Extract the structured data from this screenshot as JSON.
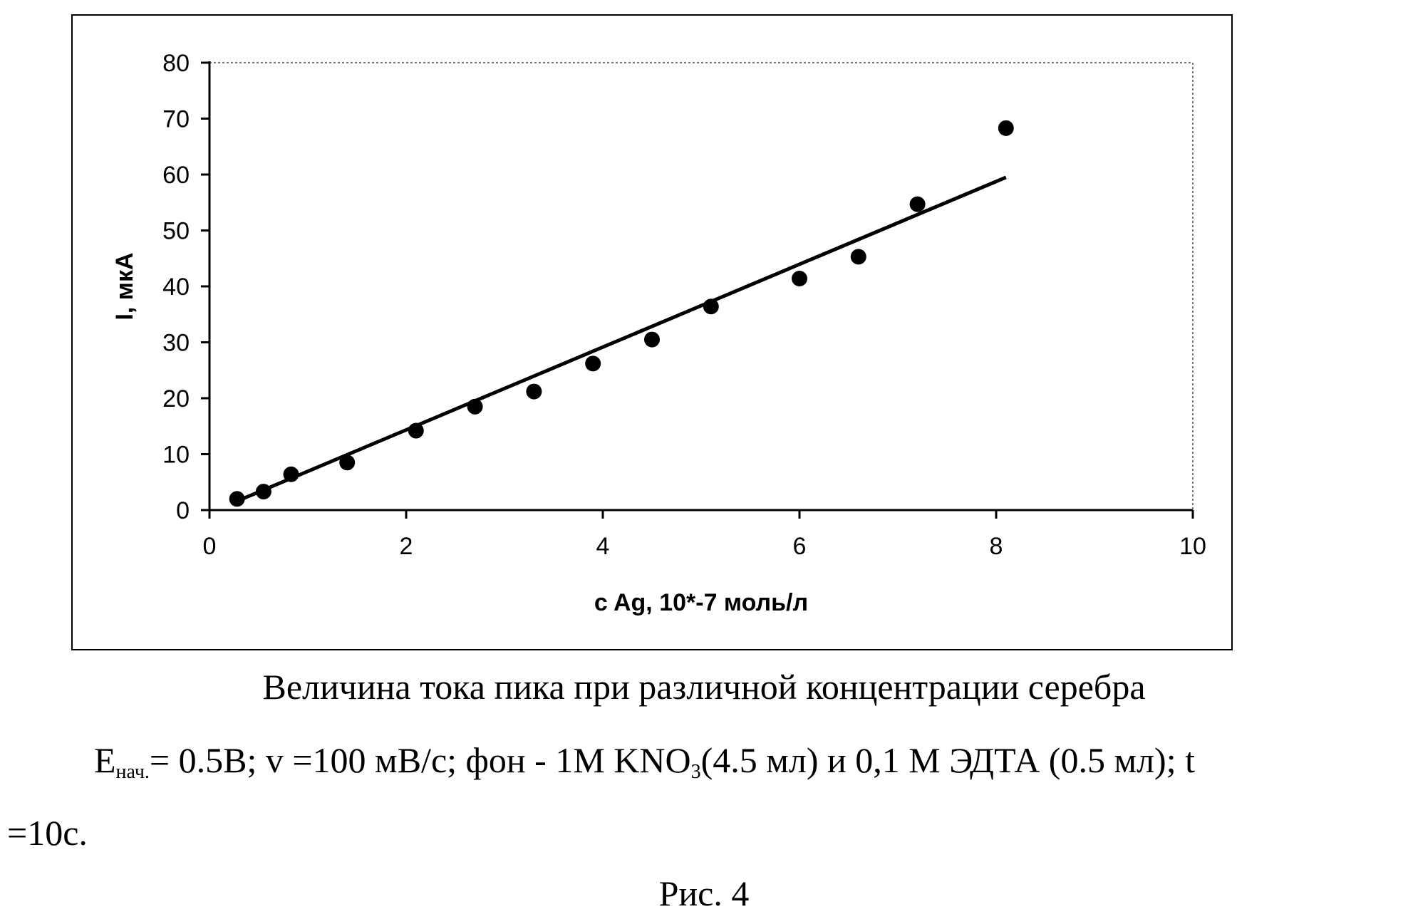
{
  "chart_data": {
    "type": "scatter",
    "title": "",
    "xlabel": "c Ag, 10*-7 моль/л",
    "ylabel": "I, мкА",
    "xlim": [
      0,
      10
    ],
    "ylim": [
      0,
      80
    ],
    "x_ticks": [
      "0",
      "2",
      "4",
      "6",
      "8",
      "10"
    ],
    "y_ticks": [
      "0",
      "10",
      "20",
      "30",
      "40",
      "50",
      "60",
      "70",
      "80"
    ],
    "grid": false,
    "legend": "none",
    "series": [
      {
        "points": [
          {
            "x": 0.28,
            "y": 2.0
          },
          {
            "x": 0.55,
            "y": 3.3
          },
          {
            "x": 0.83,
            "y": 6.4
          },
          {
            "x": 1.4,
            "y": 8.5
          },
          {
            "x": 2.1,
            "y": 14.2
          },
          {
            "x": 2.7,
            "y": 18.5
          },
          {
            "x": 3.3,
            "y": 21.2
          },
          {
            "x": 3.9,
            "y": 26.2
          },
          {
            "x": 4.5,
            "y": 30.5
          },
          {
            "x": 5.1,
            "y": 36.4
          },
          {
            "x": 6.0,
            "y": 41.4
          },
          {
            "x": 6.6,
            "y": 45.3
          },
          {
            "x": 7.2,
            "y": 54.7
          },
          {
            "x": 8.1,
            "y": 68.3
          }
        ],
        "marker_color": "#000000"
      }
    ],
    "trendline": {
      "type": "linear",
      "from": {
        "x": 0.28,
        "y": 1.6
      },
      "to": {
        "x": 8.1,
        "y": 59.5
      },
      "color": "#000000"
    }
  },
  "caption": {
    "title": "Величина тока пика при различной концентрации серебра",
    "conditions_prefix": "E",
    "conditions_sub": "нач.",
    "conditions_main": "= 0.5В; v =100 мВ/с; фон - 1М KNO",
    "conditions_sub2": "3",
    "conditions_rest": "(4.5 мл) и 0,1 М ЭДТА (0.5 мл); t",
    "conditions_continued": "=10с.",
    "figure_label": "Рис. 4"
  }
}
